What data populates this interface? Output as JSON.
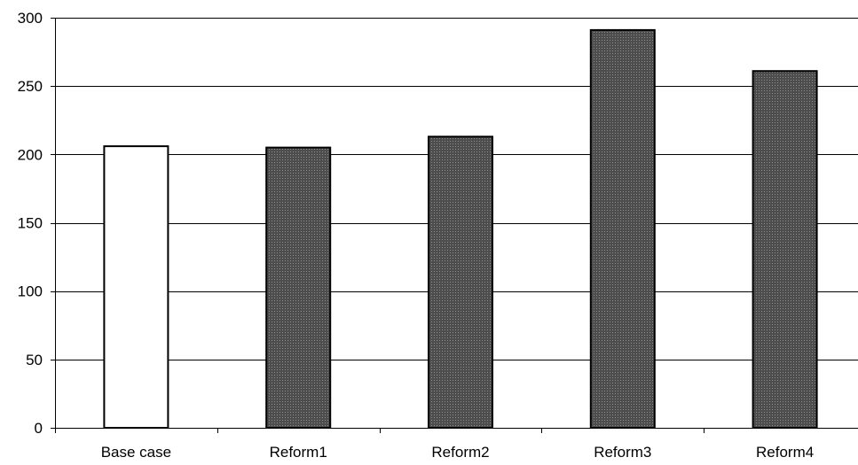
{
  "chart_data": {
    "type": "bar",
    "categories": [
      "Base case",
      "Reform1",
      "Reform2",
      "Reform3",
      "Reform4"
    ],
    "values": [
      206,
      205,
      213,
      291,
      261
    ],
    "title": "",
    "xlabel": "",
    "ylabel": "",
    "ylim": [
      0,
      300
    ],
    "yticks": [
      0,
      50,
      100,
      150,
      200,
      250,
      300
    ],
    "grid": true,
    "legend": "none",
    "colors": {
      "base": "#ffffff",
      "reform": "#4d4d4d",
      "reform_pattern_dot": "#8c8c8c",
      "outline": "#000000",
      "grid": "#000000"
    }
  }
}
